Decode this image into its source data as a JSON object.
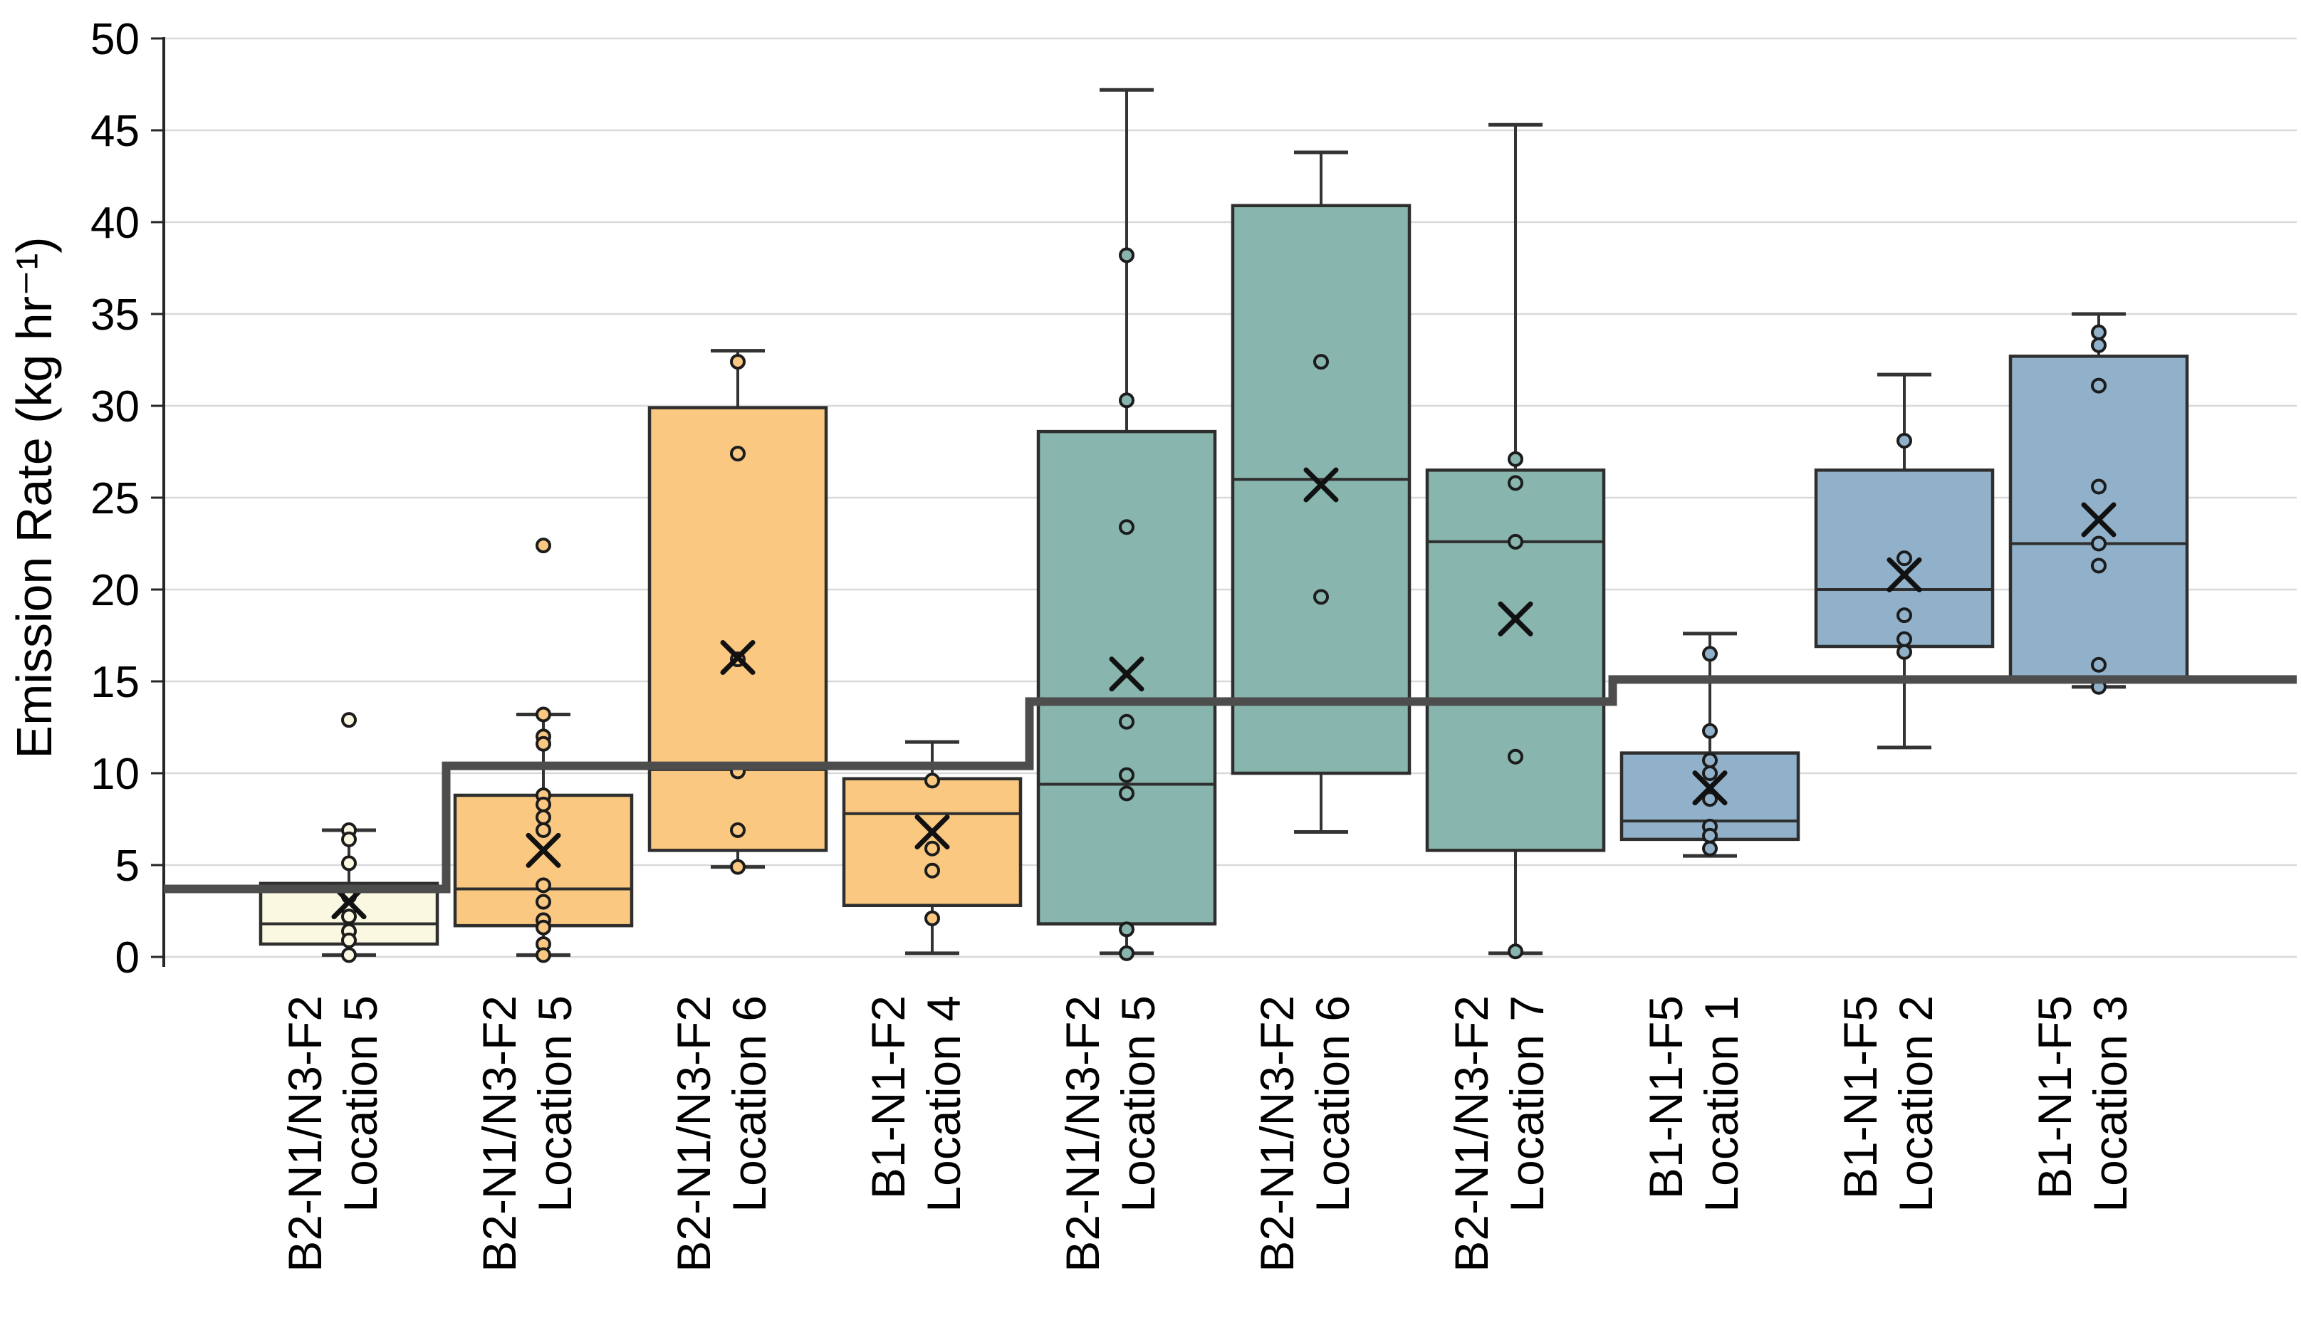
{
  "chart_data": {
    "type": "boxplot",
    "title": "",
    "xlabel": "",
    "ylabel": "Emission Rate (kg hr⁻¹)",
    "ylim": [
      0,
      50
    ],
    "ytick_step": 5,
    "ytick_labels": [
      "0",
      "5",
      "10",
      "15",
      "20",
      "25",
      "30",
      "35",
      "40",
      "45",
      "50"
    ],
    "grid": "horizontal",
    "legend": "none",
    "categories": [
      {
        "line1": "B2-N1/N3-F2",
        "line2": "Location 5",
        "group": "ivory"
      },
      {
        "line1": "B2-N1/N3-F2",
        "line2": "Location 5",
        "group": "orange"
      },
      {
        "line1": "B2-N1/N3-F2",
        "line2": "Location 6",
        "group": "orange"
      },
      {
        "line1": "B1-N1-F2",
        "line2": "Location 4",
        "group": "orange"
      },
      {
        "line1": "B2-N1/N3-F2",
        "line2": "Location 5",
        "group": "teal"
      },
      {
        "line1": "B2-N1/N3-F2",
        "line2": "Location 6",
        "group": "teal"
      },
      {
        "line1": "B2-N1/N3-F2",
        "line2": "Location 7",
        "group": "teal"
      },
      {
        "line1": "B1-N1-F5",
        "line2": "Location 1",
        "group": "blue"
      },
      {
        "line1": "B1-N1-F5",
        "line2": "Location 2",
        "group": "blue"
      },
      {
        "line1": "B1-N1-F5",
        "line2": "Location 3",
        "group": "blue"
      }
    ],
    "series": [
      {
        "whisker_low": 0.1,
        "q1": 0.7,
        "median": 1.8,
        "q3": 4.0,
        "whisker_high": 6.9,
        "mean": 3.0,
        "points": [
          12.9,
          6.9,
          6.4,
          5.1,
          3.3,
          2.6,
          2.2,
          1.4,
          0.9,
          0.1
        ]
      },
      {
        "whisker_low": 0.1,
        "q1": 1.7,
        "median": 3.7,
        "q3": 8.8,
        "whisker_high": 13.2,
        "mean": 5.8,
        "points": [
          22.4,
          13.2,
          12.0,
          11.6,
          8.8,
          8.3,
          7.6,
          6.9,
          3.9,
          3.0,
          2.0,
          1.6,
          0.7,
          0.1
        ]
      },
      {
        "whisker_low": 4.9,
        "q1": 5.8,
        "median": 10.2,
        "q3": 29.9,
        "whisker_high": 33.0,
        "mean": 16.3,
        "points": [
          32.4,
          27.4,
          16.2,
          10.1,
          6.9,
          4.9
        ]
      },
      {
        "whisker_low": 0.2,
        "q1": 2.8,
        "median": 7.8,
        "q3": 9.7,
        "whisker_high": 11.7,
        "mean": 6.8,
        "points": [
          9.6,
          5.9,
          4.7,
          2.1
        ]
      },
      {
        "whisker_low": 0.2,
        "q1": 1.8,
        "median": 9.4,
        "q3": 28.6,
        "whisker_high": 47.2,
        "mean": 15.4,
        "points": [
          38.2,
          30.3,
          23.4,
          12.8,
          9.9,
          8.9,
          1.5,
          0.2
        ]
      },
      {
        "whisker_low": 6.8,
        "q1": 10.0,
        "median": 26.0,
        "q3": 40.9,
        "whisker_high": 43.8,
        "mean": 25.7,
        "points": [
          32.4,
          19.6
        ]
      },
      {
        "whisker_low": 0.2,
        "q1": 5.8,
        "median": 22.6,
        "q3": 26.5,
        "whisker_high": 45.3,
        "mean": 18.4,
        "points": [
          27.1,
          25.8,
          22.6,
          10.9,
          0.3
        ]
      },
      {
        "whisker_low": 5.5,
        "q1": 6.4,
        "median": 7.4,
        "q3": 11.1,
        "whisker_high": 17.6,
        "mean": 9.2,
        "points": [
          16.5,
          12.3,
          10.7,
          10.0,
          8.6,
          7.1,
          6.6,
          5.9
        ]
      },
      {
        "whisker_low": 11.4,
        "q1": 16.9,
        "median": 20.0,
        "q3": 26.5,
        "whisker_high": 31.7,
        "mean": 20.8,
        "points": [
          28.1,
          21.7,
          18.6,
          17.3,
          16.6
        ]
      },
      {
        "whisker_low": 14.7,
        "q1": 15.2,
        "median": 22.5,
        "q3": 32.7,
        "whisker_high": 35.0,
        "mean": 23.8,
        "points": [
          34.0,
          33.3,
          31.1,
          25.6,
          22.5,
          21.3,
          15.9,
          14.7
        ]
      }
    ],
    "step_line": {
      "description": "stepped threshold line overlaid on plot",
      "values": [
        3.7,
        10.4,
        13.9,
        15.1
      ],
      "category_spans": [
        [
          0,
          0
        ],
        [
          1,
          3
        ],
        [
          4,
          6
        ],
        [
          7,
          9
        ]
      ],
      "color": "#4d4d4d"
    },
    "group_colors": {
      "ivory": "#faf8e1",
      "orange": "#fac880",
      "teal": "#88b5ad",
      "blue": "#90b1c9"
    },
    "style_colors": {
      "box_border": "#2e2e2e",
      "median_line": "#2e2e2e",
      "whisker": "#333333",
      "gridline": "#d9d9d9",
      "axis": "#262626",
      "mean_marker": "#111111",
      "background": "#ffffff"
    }
  }
}
